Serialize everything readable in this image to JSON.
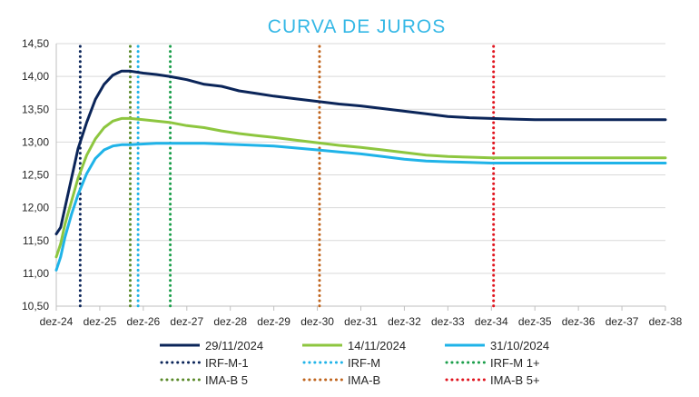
{
  "chart_data": {
    "type": "line",
    "title": "CURVA DE JUROS",
    "xlabel": "",
    "ylabel": "",
    "x_ticks": [
      "dez-24",
      "dez-25",
      "dez-26",
      "dez-27",
      "dez-28",
      "dez-29",
      "dez-30",
      "dez-31",
      "dez-32",
      "dez-33",
      "dez-34",
      "dez-35",
      "dez-36",
      "dez-37",
      "dez-38"
    ],
    "xlim": [
      "dez-24",
      "dez-38"
    ],
    "ylim": [
      10.5,
      14.5
    ],
    "y_ticks": [
      "10,50",
      "11,00",
      "11,50",
      "12,00",
      "12,50",
      "13,00",
      "13,50",
      "14,00",
      "14,50"
    ],
    "grid": "horizontal",
    "legend_position": "bottom",
    "series": [
      {
        "name": "29/11/2024",
        "color": "#0b2559",
        "style": "solid",
        "x": [
          0,
          0.1,
          0.2,
          0.35,
          0.5,
          0.7,
          0.9,
          1.1,
          1.3,
          1.5,
          1.7,
          2.0,
          2.3,
          2.6,
          3.0,
          3.4,
          3.8,
          4.2,
          4.6,
          5.0,
          5.5,
          6.0,
          6.5,
          7.0,
          7.5,
          8.0,
          8.5,
          9.0,
          9.5,
          10.0,
          10.5,
          11.0,
          11.5,
          12.0,
          12.5,
          13.0,
          13.5,
          14.0
        ],
        "y": [
          11.6,
          11.7,
          12.0,
          12.45,
          12.9,
          13.3,
          13.65,
          13.88,
          14.02,
          14.08,
          14.08,
          14.05,
          14.03,
          14.0,
          13.95,
          13.88,
          13.85,
          13.78,
          13.74,
          13.7,
          13.66,
          13.62,
          13.58,
          13.55,
          13.51,
          13.47,
          13.43,
          13.39,
          13.37,
          13.36,
          13.35,
          13.34,
          13.34,
          13.34,
          13.34,
          13.34,
          13.34,
          13.34
        ]
      },
      {
        "name": "14/11/2024",
        "color": "#8dc63f",
        "style": "solid",
        "x": [
          0,
          0.1,
          0.2,
          0.35,
          0.5,
          0.7,
          0.9,
          1.1,
          1.3,
          1.5,
          1.7,
          2.0,
          2.3,
          2.6,
          3.0,
          3.4,
          3.8,
          4.2,
          4.6,
          5.0,
          5.5,
          6.0,
          6.5,
          7.0,
          7.5,
          8.0,
          8.5,
          9.0,
          9.5,
          10.0,
          10.5,
          11.0,
          11.5,
          12.0,
          12.5,
          13.0,
          13.5,
          14.0
        ],
        "y": [
          11.25,
          11.45,
          11.75,
          12.1,
          12.45,
          12.8,
          13.05,
          13.22,
          13.32,
          13.36,
          13.36,
          13.34,
          13.32,
          13.3,
          13.25,
          13.22,
          13.17,
          13.13,
          13.1,
          13.07,
          13.03,
          12.99,
          12.95,
          12.92,
          12.88,
          12.84,
          12.8,
          12.78,
          12.77,
          12.76,
          12.76,
          12.76,
          12.76,
          12.76,
          12.76,
          12.76,
          12.76,
          12.76
        ]
      },
      {
        "name": "31/10/2024",
        "color": "#1fb3e8",
        "style": "solid",
        "x": [
          0,
          0.1,
          0.2,
          0.35,
          0.5,
          0.7,
          0.9,
          1.1,
          1.3,
          1.5,
          1.7,
          2.0,
          2.3,
          2.6,
          3.0,
          3.4,
          3.8,
          4.2,
          4.6,
          5.0,
          5.5,
          6.0,
          6.5,
          7.0,
          7.5,
          8.0,
          8.5,
          9.0,
          9.5,
          10.0,
          10.5,
          11.0,
          11.5,
          12.0,
          12.5,
          13.0,
          13.5,
          14.0
        ],
        "y": [
          11.05,
          11.25,
          11.55,
          11.9,
          12.2,
          12.52,
          12.75,
          12.88,
          12.94,
          12.96,
          12.96,
          12.97,
          12.98,
          12.98,
          12.98,
          12.98,
          12.97,
          12.96,
          12.95,
          12.94,
          12.91,
          12.88,
          12.85,
          12.82,
          12.78,
          12.74,
          12.71,
          12.7,
          12.69,
          12.68,
          12.68,
          12.68,
          12.68,
          12.68,
          12.68,
          12.68,
          12.68,
          12.68
        ]
      }
    ],
    "markers": [
      {
        "name": "IRF-M-1",
        "color": "#0b2559",
        "x": 0.55
      },
      {
        "name": "IRF-M",
        "color": "#1fb3e8",
        "x": 1.88
      },
      {
        "name": "IRF-M 1+",
        "color": "#1a9e4a",
        "x": 2.62
      },
      {
        "name": "IMA-B 5",
        "color": "#5a8a2a",
        "x": 1.7
      },
      {
        "name": "IMA-B",
        "color": "#c0651e",
        "x": 6.05
      },
      {
        "name": "IMA-B 5+",
        "color": "#e0141e",
        "x": 10.05
      }
    ]
  },
  "legend": [
    {
      "label": "29/11/2024",
      "color": "#0b2559",
      "style": "solid"
    },
    {
      "label": "14/11/2024",
      "color": "#8dc63f",
      "style": "solid"
    },
    {
      "label": "31/10/2024",
      "color": "#1fb3e8",
      "style": "solid"
    },
    {
      "label": "IRF-M-1",
      "color": "#0b2559",
      "style": "dotted"
    },
    {
      "label": "IRF-M",
      "color": "#1fb3e8",
      "style": "dotted"
    },
    {
      "label": "IRF-M 1+",
      "color": "#1a9e4a",
      "style": "dotted"
    },
    {
      "label": "IMA-B 5",
      "color": "#5a8a2a",
      "style": "dotted"
    },
    {
      "label": "IMA-B",
      "color": "#c0651e",
      "style": "dotted"
    },
    {
      "label": "IMA-B 5+",
      "color": "#e0141e",
      "style": "dotted"
    }
  ],
  "colors": {
    "title": "#35b8e6",
    "axis": "#bfbfbf",
    "grid": "#d9d9d9",
    "text": "#262626"
  }
}
